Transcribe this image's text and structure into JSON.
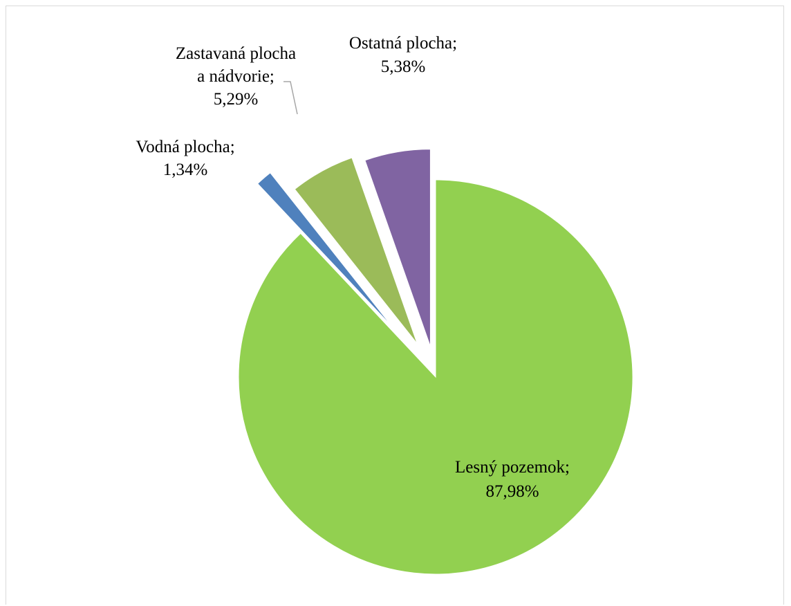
{
  "chart_data": {
    "type": "pie",
    "title": "",
    "slices": [
      {
        "label": "Lesný pozemok",
        "value_label": "87,98%",
        "value": 87.98,
        "color": "#92d050"
      },
      {
        "label": "Vodná plocha",
        "value_label": "1,34%",
        "value": 1.34,
        "color": "#4f81bd"
      },
      {
        "label": "Zastavaná plocha a nádvorie",
        "label_lines": [
          "Zastavaná plocha",
          "a nádvorie;"
        ],
        "value_label": "5,29%",
        "value": 5.29,
        "color": "#9bbb59"
      },
      {
        "label": "Ostatná plocha",
        "value_label": "5,38%",
        "value": 5.38,
        "color": "#8064a2"
      }
    ],
    "legend": "none",
    "data_labels": "category; percentage"
  }
}
